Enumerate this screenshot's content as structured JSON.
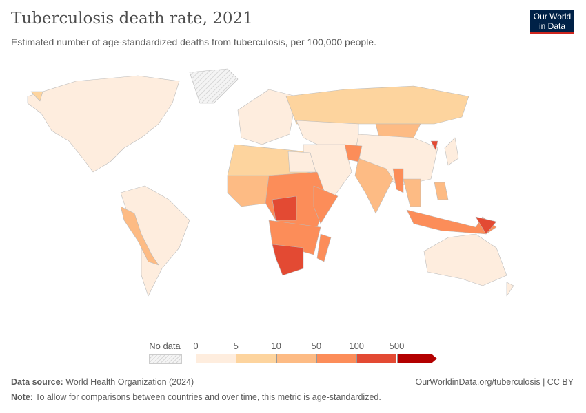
{
  "header": {
    "title": "Tuberculosis death rate, 2021",
    "subtitle": "Estimated number of age-standardized deaths from tuberculosis, per 100,000 people.",
    "logo": "Our World in Data"
  },
  "legend": {
    "no_data_label": "No data",
    "breaks": [
      "0",
      "5",
      "10",
      "50",
      "100",
      "500"
    ],
    "colors": [
      "#feedde",
      "#fdd49e",
      "#fdbb84",
      "#fc8d59",
      "#e34a33",
      "#b30000"
    ],
    "no_data_color": "#e8e8e8"
  },
  "footer": {
    "source_label": "Data source:",
    "source": "World Health Organization (2024)",
    "note_label": "Note:",
    "note": "To allow for comparisons between countries and over time, this metric is age-standardized.",
    "url": "OurWorldinData.org/tuberculosis | CC BY"
  }
}
